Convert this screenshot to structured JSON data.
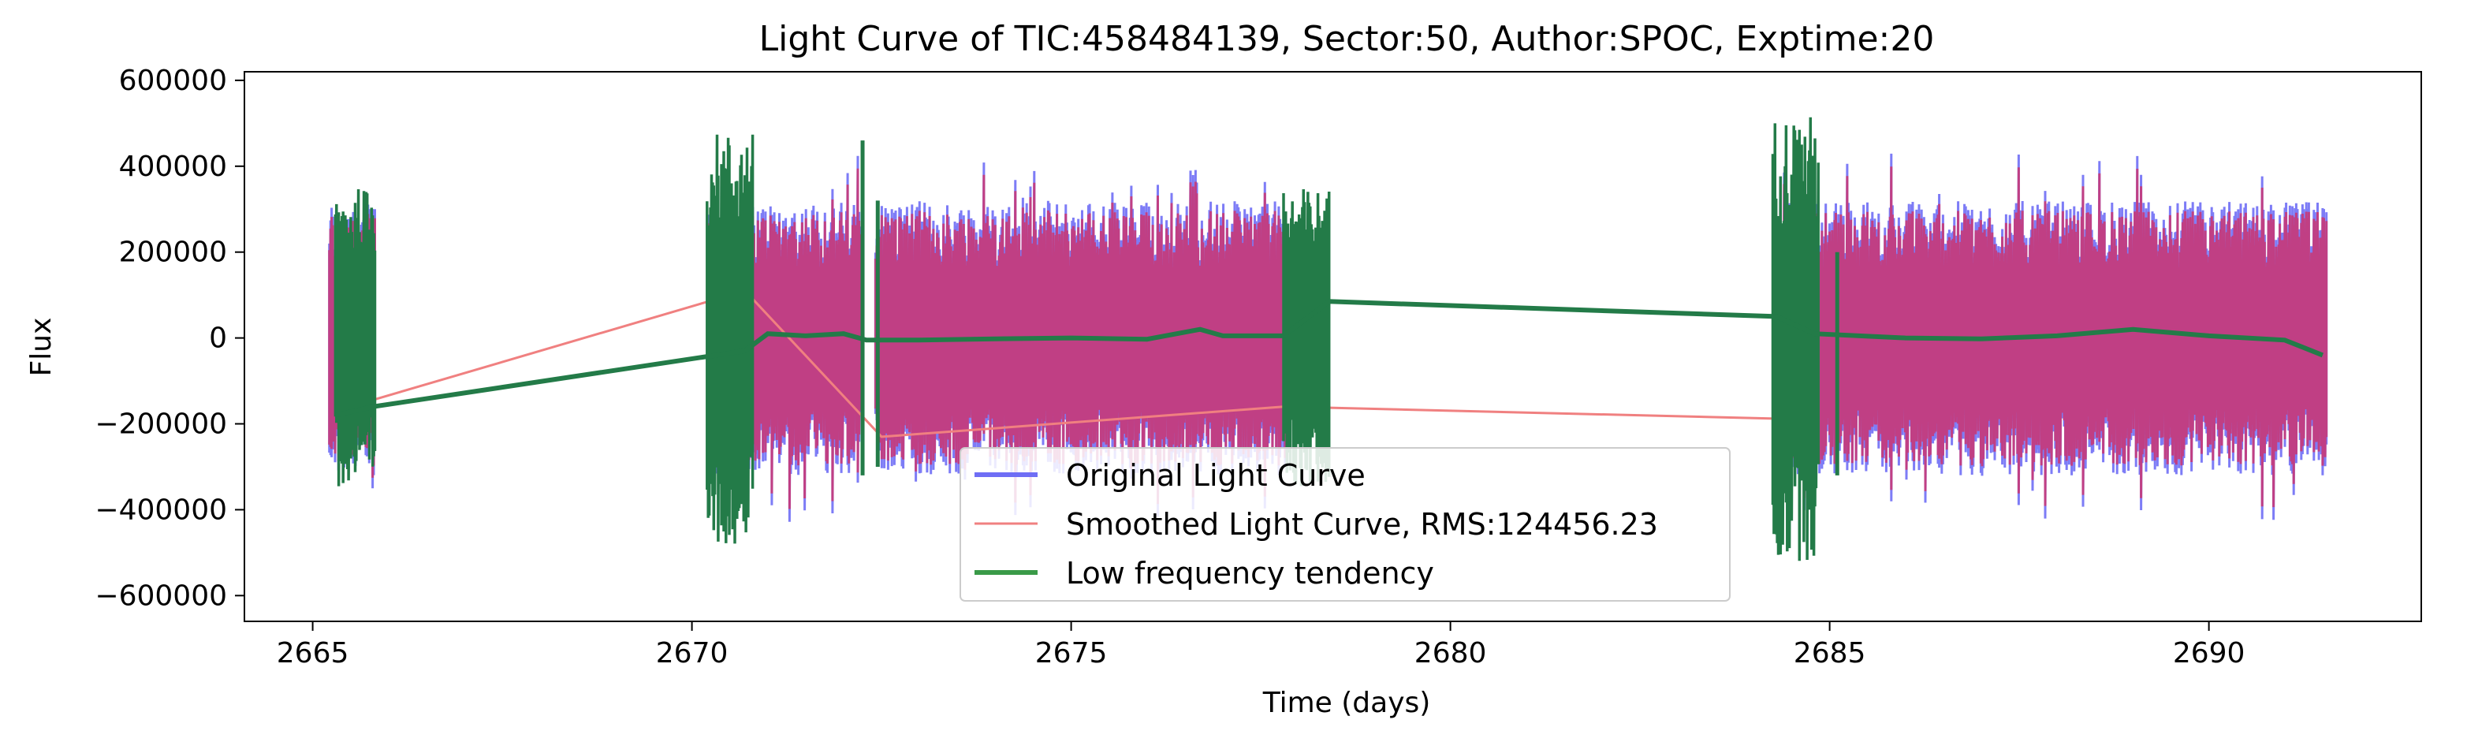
{
  "chart_data": {
    "type": "line",
    "title": "Light Curve of TIC:458484139, Sector:50, Author:SPOC, Exptime:20",
    "xlabel": "Time (days)",
    "ylabel": "Flux",
    "xlim": [
      2664.1,
      2692.8
    ],
    "ylim": [
      -660000,
      620000
    ],
    "xticks": [
      2665,
      2670,
      2675,
      2680,
      2685,
      2690
    ],
    "yticks": [
      -600000,
      -400000,
      -200000,
      0,
      200000,
      400000,
      600000
    ],
    "xtick_labels": [
      "2665",
      "2670",
      "2675",
      "2680",
      "2685",
      "2690"
    ],
    "ytick_labels": [
      "−600000",
      "−400000",
      "−200000",
      "0",
      "200000",
      "400000",
      "600000"
    ],
    "grid": false,
    "legend_placement": "lower-center",
    "segments": [
      {
        "start": 2665.22,
        "end": 2665.82,
        "high": 400000,
        "low": -350000
      },
      {
        "start": 2670.22,
        "end": 2672.22,
        "high": 520000,
        "low": -500000
      },
      {
        "start": 2672.42,
        "end": 2677.82,
        "high": 500000,
        "low": -450000
      },
      {
        "start": 2684.25,
        "end": 2691.55,
        "high": 560000,
        "low": -560000
      }
    ],
    "series": [
      {
        "name": "Original Light Curve",
        "color": "#6f6ef5",
        "note_style": "oscillating",
        "amplitude": 320000
      },
      {
        "name": "Smoothed Light Curve, RMS:124456.23",
        "color": "#f08080",
        "oscillating_amplitude": 300000,
        "trend_x": [
          2665.3,
          2670.7,
          2672.5,
          2677.8,
          2684.8
        ],
        "trend_y": [
          -170000,
          110000,
          -230000,
          -160000,
          -190000
        ]
      },
      {
        "name": "Low frequency tendency",
        "color": "#237b48",
        "trend_x": [
          2665.3,
          2665.8,
          2670.7,
          2671.0,
          2671.5,
          2672.0,
          2672.3,
          2673.0,
          2674.0,
          2675.0,
          2676.0,
          2676.7,
          2677.0,
          2677.8,
          2678.4,
          2684.3,
          2684.8,
          2686.0,
          2687.0,
          2688.0,
          2689.0,
          2690.0,
          2691.0,
          2691.5
        ],
        "trend_y": [
          -180000,
          -160000,
          -30000,
          10000,
          5000,
          10000,
          -5000,
          -5000,
          -2000,
          0,
          -3000,
          20000,
          5000,
          5000,
          85000,
          50000,
          10000,
          0,
          -2000,
          5000,
          20000,
          5000,
          -5000,
          -40000
        ],
        "scatter_segments": [
          {
            "start": 2665.3,
            "end": 2665.82,
            "amp": 350000
          },
          {
            "start": 2670.2,
            "end": 2670.8,
            "amp": 480000
          },
          {
            "start": 2677.8,
            "end": 2678.4,
            "amp": 350000
          },
          {
            "start": 2684.25,
            "end": 2684.85,
            "amp": 520000
          }
        ]
      }
    ]
  }
}
